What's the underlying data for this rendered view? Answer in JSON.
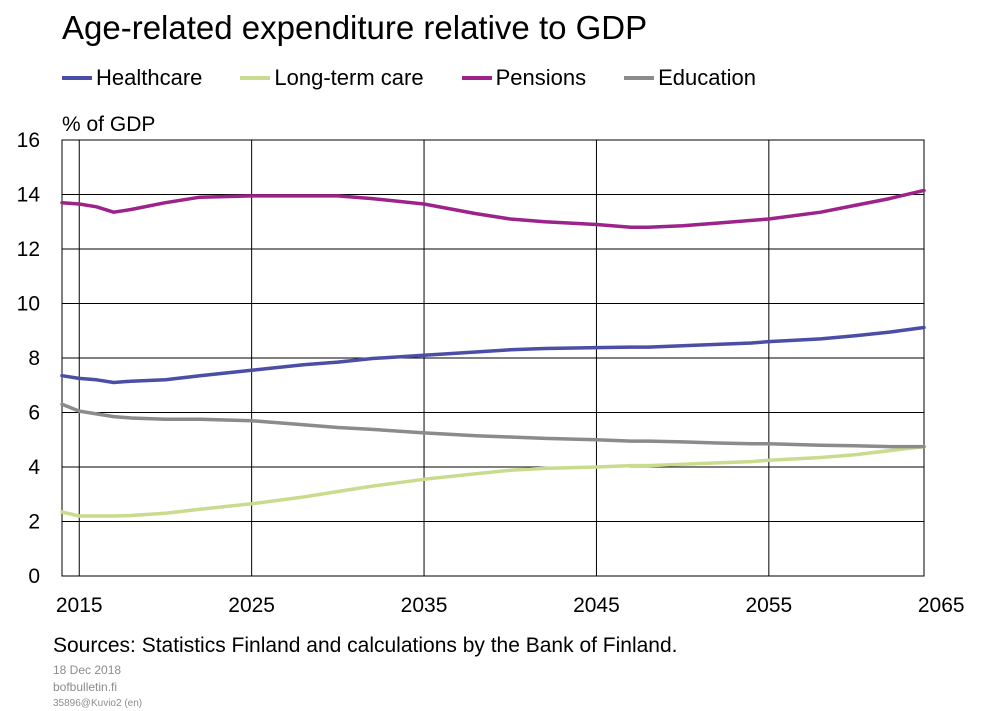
{
  "title": "Age-related expenditure relative to GDP",
  "sources": "Sources: Statistics Finland and calculations by the Bank of Finland.",
  "footer": {
    "date": "18 Dec 2018",
    "site": "bofbulletin.fi",
    "code": "35896@Kuvio2 (en)"
  },
  "chart_data": {
    "type": "line",
    "ylabel": "% of GDP",
    "xlabel": "",
    "xlim": [
      2014,
      2064
    ],
    "ylim": [
      0,
      16
    ],
    "x_ticks": [
      2015,
      2025,
      2035,
      2045,
      2055,
      2065
    ],
    "y_ticks": [
      0,
      2,
      4,
      6,
      8,
      10,
      12,
      14,
      16
    ],
    "grid": true,
    "legend_position": "top",
    "x": [
      2014,
      2015,
      2016,
      2017,
      2018,
      2020,
      2022,
      2025,
      2028,
      2030,
      2032,
      2035,
      2038,
      2040,
      2042,
      2045,
      2047,
      2048,
      2050,
      2052,
      2054,
      2055,
      2058,
      2060,
      2062,
      2064
    ],
    "series": [
      {
        "name": "Healthcare",
        "color": "#4a4ea6",
        "values": [
          7.35,
          7.25,
          7.2,
          7.1,
          7.15,
          7.2,
          7.35,
          7.55,
          7.75,
          7.85,
          7.98,
          8.1,
          8.22,
          8.3,
          8.35,
          8.38,
          8.4,
          8.4,
          8.45,
          8.5,
          8.55,
          8.6,
          8.7,
          8.82,
          8.95,
          9.12
        ]
      },
      {
        "name": "Long-term care",
        "color": "#c9dc8e",
        "values": [
          2.35,
          2.2,
          2.2,
          2.2,
          2.22,
          2.3,
          2.45,
          2.65,
          2.9,
          3.1,
          3.3,
          3.55,
          3.75,
          3.88,
          3.95,
          4.0,
          4.05,
          4.05,
          4.1,
          4.15,
          4.2,
          4.25,
          4.35,
          4.45,
          4.6,
          4.75
        ]
      },
      {
        "name": "Pensions",
        "color": "#9c2389",
        "values": [
          13.7,
          13.65,
          13.55,
          13.35,
          13.45,
          13.7,
          13.9,
          13.95,
          13.95,
          13.95,
          13.85,
          13.65,
          13.3,
          13.1,
          13.0,
          12.9,
          12.8,
          12.8,
          12.85,
          12.95,
          13.05,
          13.1,
          13.35,
          13.6,
          13.85,
          14.15
        ]
      },
      {
        "name": "Education",
        "color": "#8b8b8b",
        "values": [
          6.3,
          6.05,
          5.95,
          5.85,
          5.8,
          5.75,
          5.75,
          5.7,
          5.55,
          5.45,
          5.38,
          5.25,
          5.15,
          5.1,
          5.05,
          5.0,
          4.95,
          4.95,
          4.92,
          4.88,
          4.85,
          4.85,
          4.8,
          4.78,
          4.75,
          4.75
        ]
      }
    ]
  }
}
